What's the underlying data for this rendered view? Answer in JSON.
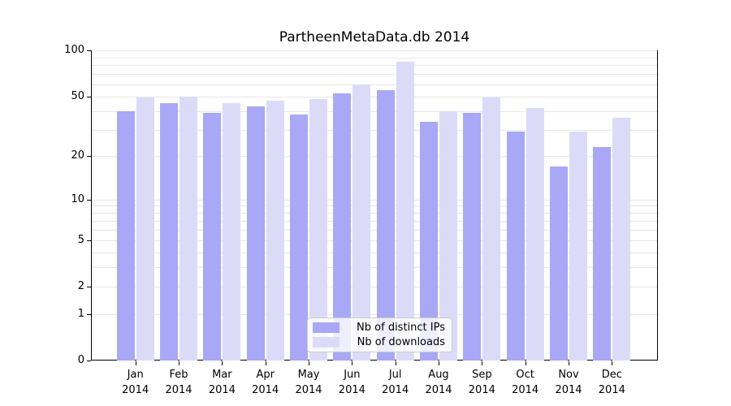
{
  "chart_data": {
    "type": "bar",
    "title": "PartheenMetaData.db 2014",
    "categories": [
      "Jan",
      "Feb",
      "Mar",
      "Apr",
      "May",
      "Jun",
      "Jul",
      "Aug",
      "Sep",
      "Oct",
      "Nov",
      "Dec"
    ],
    "category_year": "2014",
    "series": [
      {
        "name": "Nb of distinct IPs",
        "color": "#a8a8f6",
        "values": [
          40,
          45,
          39,
          43,
          38,
          52,
          55,
          34,
          39,
          29,
          17,
          23
        ]
      },
      {
        "name": "Nb of downloads",
        "color": "#dbdbf8",
        "values": [
          49,
          50,
          45,
          47,
          48,
          60,
          84,
          40,
          49,
          42,
          29,
          36
        ]
      }
    ],
    "ylabel": "",
    "xlabel": "",
    "yticks": [
      0,
      1,
      2,
      5,
      10,
      20,
      50,
      100
    ],
    "gridline_values": [
      1,
      2,
      3,
      4,
      5,
      6,
      7,
      8,
      9,
      10,
      20,
      30,
      40,
      50,
      60,
      70,
      80,
      90,
      100
    ],
    "ylim": [
      0,
      100
    ],
    "yscale": "log10(1+y)",
    "grid": true,
    "legend_position": "bottom-center",
    "colors": {
      "grid": "#e7e7e7",
      "axis": "#000000",
      "legend_border": "#cccccc"
    }
  }
}
